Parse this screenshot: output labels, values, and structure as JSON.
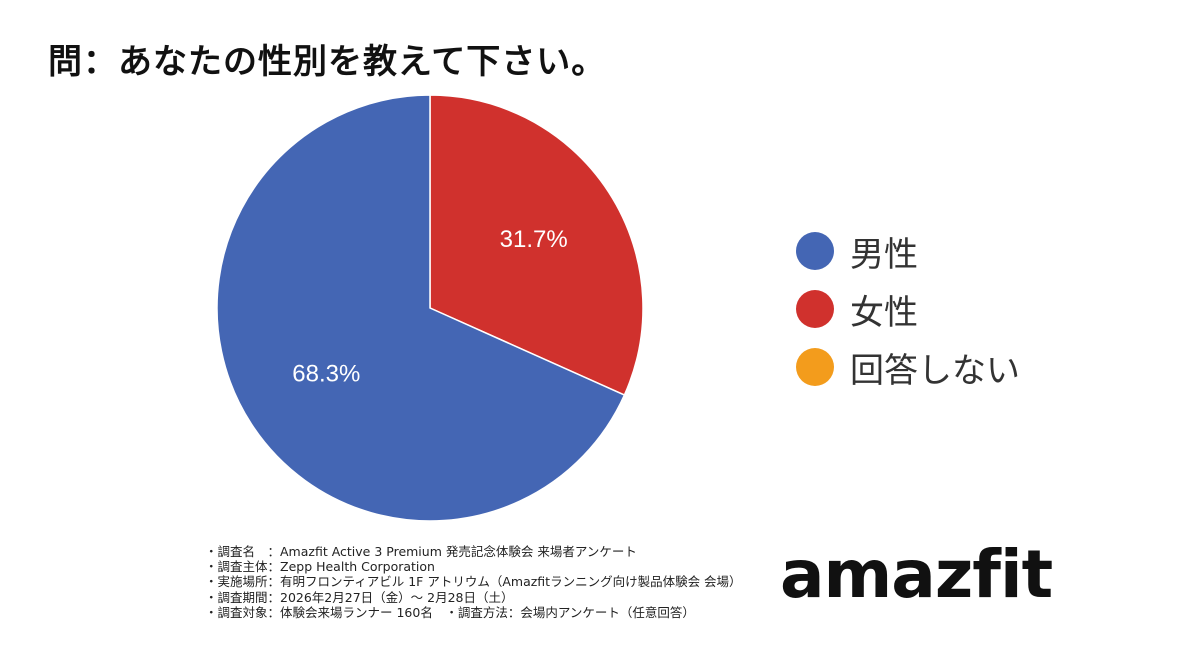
{
  "title": "問：あなたの性別を教えて下さい。",
  "chart_data": {
    "type": "pie",
    "start_angle_deg": -90,
    "direction": "clockwise",
    "slices": [
      {
        "name": "女性",
        "value": 31.7,
        "label": "31.7%",
        "color": "#d0312d"
      },
      {
        "name": "男性",
        "value": 68.3,
        "label": "68.3%",
        "color": "#4466b4"
      },
      {
        "name": "回答しない",
        "value": 0,
        "label": "",
        "color": "#f39c1c"
      }
    ],
    "legend": {
      "placement": "right",
      "entries": [
        {
          "label": "男性",
          "color": "#4466b4"
        },
        {
          "label": "女性",
          "color": "#d0312d"
        },
        {
          "label": "回答しない",
          "color": "#f39c1c"
        }
      ]
    }
  },
  "notes": [
    "・調査名　：Amazfit Active 3 Premium 発売記念体験会 来場者アンケート",
    "・調査主体：Zepp Health Corporation",
    "・実施場所：有明フロンティアビル 1F アトリウム（Amazfitランニング向け製品体験会 会場）",
    "・調査期間：2026年2月27日（金）～ 2月28日（土）",
    "・調査対象：体験会来場ランナー 160名　・調査方法：会場内アンケート（任意回答）"
  ],
  "logo": {
    "text": "amazfit"
  }
}
